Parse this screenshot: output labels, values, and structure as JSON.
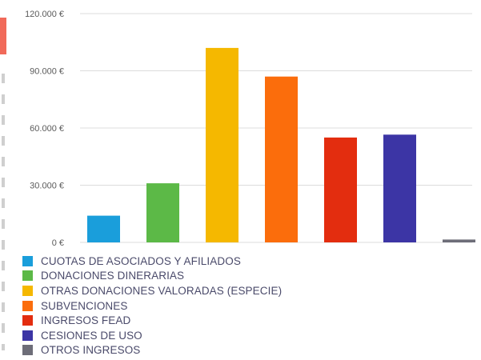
{
  "chart_data": {
    "type": "bar",
    "title": "",
    "xlabel": "",
    "ylabel": "",
    "ylim": [
      0,
      120000
    ],
    "yticks": [
      0,
      30000,
      60000,
      90000,
      120000
    ],
    "ytick_labels": [
      "0 €",
      "30.000 €",
      "60.000 €",
      "90.000 €",
      "120.000 €"
    ],
    "grid": true,
    "legend_position": "bottom-left",
    "categories": [
      "CUOTAS DE ASOCIADOS Y AFILIADOS",
      "DONACIONES DINERARIAS",
      "OTRAS DONACIONES VALORADAS (ESPECIE)",
      "SUBVENCIONES",
      "INGRESOS FEAD",
      "CESIONES DE USO",
      "OTROS INGRESOS"
    ],
    "values": [
      14000,
      31000,
      102000,
      87000,
      55000,
      56500,
      1500
    ],
    "colors": [
      "#1a9edb",
      "#5cb947",
      "#f5b800",
      "#fb6d0c",
      "#e32d0f",
      "#3c35a5",
      "#6d6d78"
    ]
  }
}
